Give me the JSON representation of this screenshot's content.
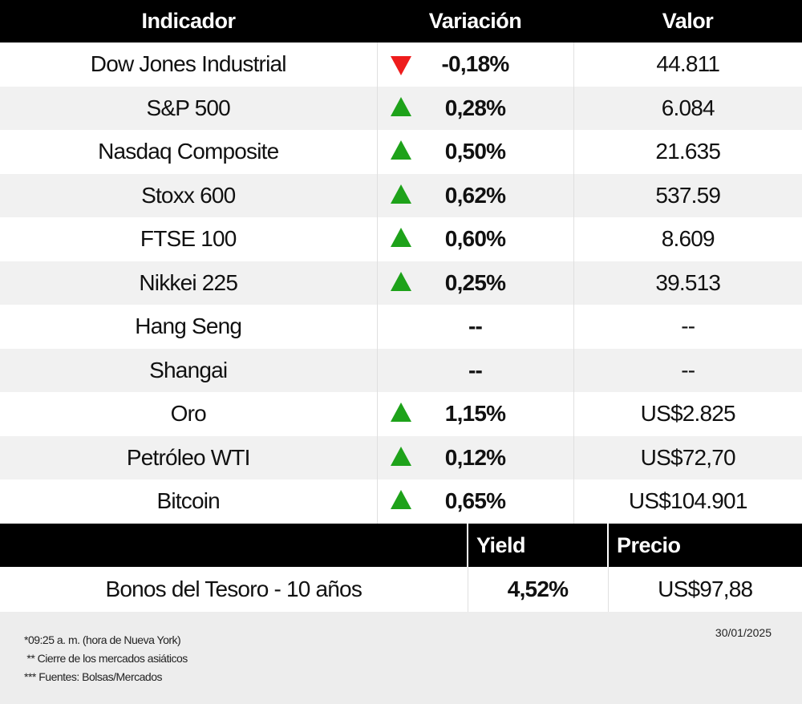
{
  "table": {
    "headers": {
      "indicator": "Indicador",
      "variation": "Variación",
      "value": "Valor"
    },
    "rows": [
      {
        "name": "Dow Jones Industrial",
        "direction": "down",
        "variation": "-0,18%",
        "value": "44.811"
      },
      {
        "name": "S&P 500",
        "direction": "up",
        "variation": "0,28%",
        "value": "6.084"
      },
      {
        "name": "Nasdaq Composite",
        "direction": "up",
        "variation": "0,50%",
        "value": "21.635"
      },
      {
        "name": "Stoxx 600",
        "direction": "up",
        "variation": "0,62%",
        "value": "537.59"
      },
      {
        "name": "FTSE 100",
        "direction": "up",
        "variation": "0,60%",
        "value": "8.609"
      },
      {
        "name": "Nikkei 225",
        "direction": "up",
        "variation": "0,25%",
        "value": "39.513"
      },
      {
        "name": "Hang Seng",
        "direction": "none",
        "variation": "--",
        "value": "--"
      },
      {
        "name": "Shangai",
        "direction": "none",
        "variation": "--",
        "value": "--"
      },
      {
        "name": "Oro",
        "direction": "up",
        "variation": "1,15%",
        "value": "US$2.825"
      },
      {
        "name": "Petróleo WTI",
        "direction": "up",
        "variation": "0,12%",
        "value": "US$72,70"
      },
      {
        "name": "Bitcoin",
        "direction": "up",
        "variation": "0,65%",
        "value": "US$104.901"
      }
    ]
  },
  "bonds": {
    "headers": {
      "yield": "Yield",
      "price": "Precio"
    },
    "row": {
      "name": "Bonos del Tesoro - 10 años",
      "yield": "4,52%",
      "price": "US$97,88"
    }
  },
  "footer": {
    "notes": [
      "*09:25 a. m. (hora de Nueva York)",
      " ** Cierre de los mercados asiáticos",
      "*** Fuentes: Bolsas/Mercados"
    ],
    "date": "30/01/2025"
  },
  "colors": {
    "up": "#1ea21a",
    "down": "#ee1c1c",
    "header_bg": "#000000",
    "alt_row_bg": "#f1f1f1"
  }
}
